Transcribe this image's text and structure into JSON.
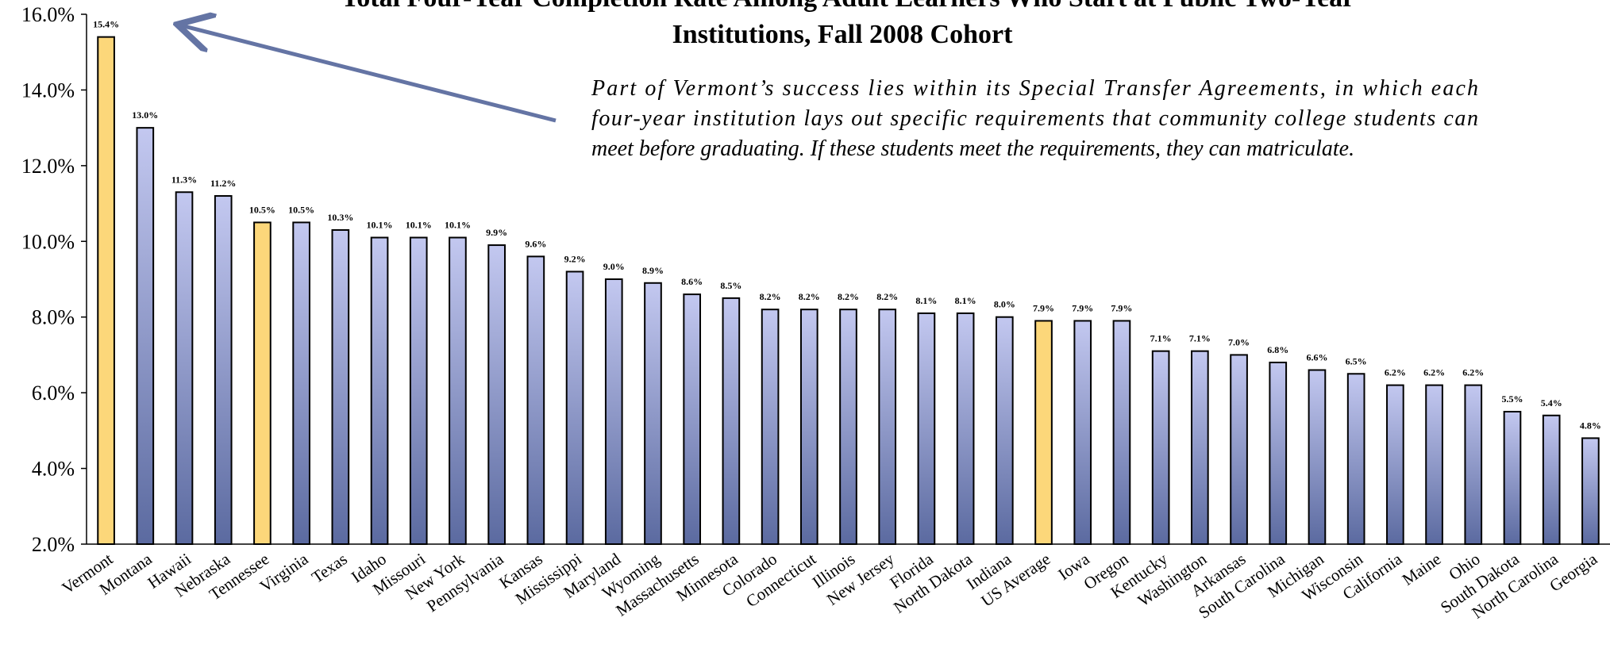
{
  "chart_data": {
    "type": "bar",
    "title_lines": [
      "Total Four-Year Completion Rate Among Adult Learners Who Start at Public Two-Year",
      "Institutions, Fall 2008 Cohort"
    ],
    "annotation_lines": [
      "Part of Vermont’s success lies within its Special Transfer Agreements, in which each",
      "four-year institution lays out specific requirements that community college students can",
      "meet before graduating. If these students meet the requirements, they can matriculate."
    ],
    "categories": [
      "Vermont",
      "Montana",
      "Hawaii",
      "Nebraska",
      "Tennessee",
      "Virginia",
      "Texas",
      "Idaho",
      "Missouri",
      "New York",
      "Pennsylvania",
      "Kansas",
      "Mississippi",
      "Maryland",
      "Wyoming",
      "Massachusetts",
      "Minnesota",
      "Colorado",
      "Connecticut",
      "Illinois",
      "New Jersey",
      "Florida",
      "North Dakota",
      "Indiana",
      "US Average",
      "Iowa",
      "Oregon",
      "Kentucky",
      "Washington",
      "Arkansas",
      "South Carolina",
      "Michigan",
      "Wisconsin",
      "California",
      "Maine",
      "Ohio",
      "South Dakota",
      "North Carolina",
      "Georgia"
    ],
    "values": [
      15.4,
      13.0,
      11.3,
      11.2,
      10.5,
      10.5,
      10.3,
      10.1,
      10.1,
      10.1,
      9.9,
      9.6,
      9.2,
      9.0,
      8.9,
      8.6,
      8.5,
      8.2,
      8.2,
      8.2,
      8.2,
      8.1,
      8.1,
      8.0,
      7.9,
      7.9,
      7.9,
      7.1,
      7.1,
      7.0,
      6.8,
      6.6,
      6.5,
      6.2,
      6.2,
      6.2,
      5.5,
      5.4,
      4.8
    ],
    "data_labels": [
      "15.4%",
      "13.0%",
      "11.3%",
      "11.2%",
      "10.5%",
      "10.5%",
      "10.3%",
      "10.1%",
      "10.1%",
      "10.1%",
      "9.9%",
      "9.6%",
      "9.2%",
      "9.0%",
      "8.9%",
      "8.6%",
      "8.5%",
      "8.2%",
      "8.2%",
      "8.2%",
      "8.2%",
      "8.1%",
      "8.1%",
      "8.0%",
      "7.9%",
      "7.9%",
      "7.9%",
      "7.1%",
      "7.1%",
      "7.0%",
      "6.8%",
      "6.6%",
      "6.5%",
      "6.2%",
      "6.2%",
      "6.2%",
      "5.5%",
      "5.4%",
      "4.8%"
    ],
    "highlighted": [
      "Vermont",
      "Tennessee",
      "US Average"
    ],
    "yticks": [
      "2.0%",
      "4.0%",
      "6.0%",
      "8.0%",
      "10.0%",
      "12.0%",
      "14.0%",
      "16.0%"
    ],
    "ylim": [
      2,
      16
    ],
    "grid": false,
    "legend": "none",
    "colors": {
      "bar_top": "#c3c8f0",
      "bar_bottom": "#5b6aa0",
      "highlight": "#fcd77a",
      "arrow": "#6474a4",
      "outline": "#000000"
    }
  }
}
